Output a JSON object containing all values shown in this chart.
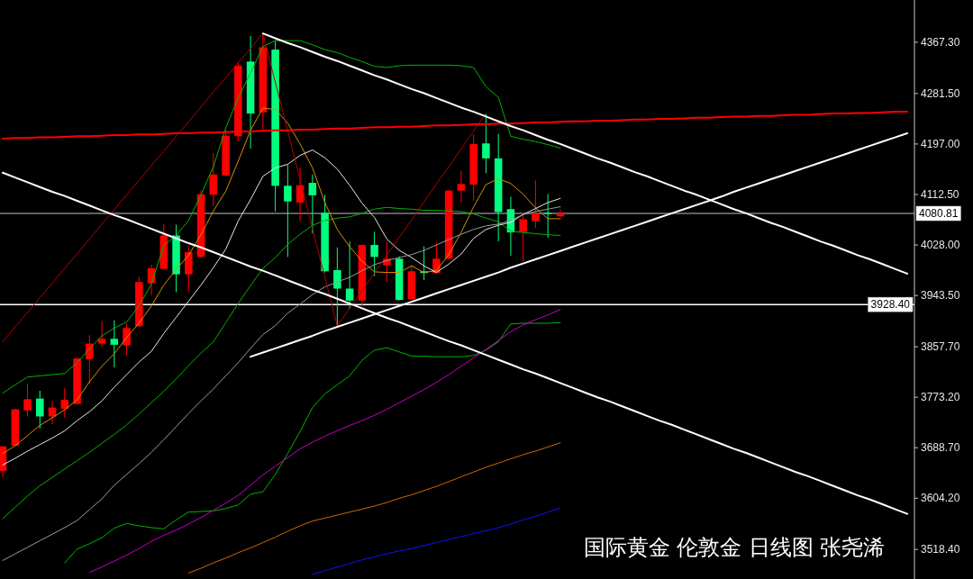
{
  "chart_data": {
    "type": "candlestick",
    "title": "国际黄金 伦敦金 日线图 张尧浠",
    "categories": [
      null,
      null,
      null,
      null,
      null,
      null,
      null,
      null,
      null,
      null,
      null,
      null,
      null,
      null,
      null,
      null,
      null,
      null,
      null,
      null,
      null,
      null,
      null,
      null,
      null,
      null,
      null,
      null,
      null,
      null,
      null,
      null,
      null,
      null,
      null,
      null,
      null,
      null,
      null,
      null,
      null,
      null,
      null,
      null,
      null,
      null,
      null,
      null,
      null,
      null,
      null,
      null,
      null,
      null,
      null,
      null,
      null,
      null,
      null,
      null,
      null,
      null,
      null,
      null,
      null,
      null,
      null,
      null,
      null,
      null,
      null,
      null,
      null,
      null
    ],
    "ohlc": [
      [
        3650,
        3692,
        3639,
        3691
      ],
      [
        3692,
        3754,
        3691,
        3753
      ],
      [
        3751,
        3796,
        3741,
        3770
      ],
      [
        3771,
        3784,
        3721,
        3741
      ],
      [
        3741,
        3767,
        3728,
        3756
      ],
      [
        3754,
        3789,
        3739,
        3769
      ],
      [
        3762,
        3840,
        3761,
        3838
      ],
      [
        3837,
        3877,
        3796,
        3863
      ],
      [
        3863,
        3901,
        3857,
        3871
      ],
      [
        3871,
        3902,
        3823,
        3861
      ],
      [
        3860,
        3897,
        3843,
        3889
      ],
      [
        3892,
        3975,
        3891,
        3966
      ],
      [
        3964,
        3995,
        3944,
        3989
      ],
      [
        3988,
        4063,
        3987,
        4044
      ],
      [
        4044,
        4062,
        3949,
        3979
      ],
      [
        3979,
        4026,
        3950,
        4016
      ],
      [
        4008,
        4119,
        4007,
        4113
      ],
      [
        4112,
        4182,
        4093,
        4146
      ],
      [
        4144,
        4221,
        4143,
        4211
      ],
      [
        4210,
        4333,
        4202,
        4328
      ],
      [
        4335,
        4378,
        4189,
        4248
      ],
      [
        4250,
        4382,
        4221,
        4359
      ],
      [
        4355,
        4370,
        4084,
        4127
      ],
      [
        4127,
        4162,
        4008,
        4101
      ],
      [
        4099,
        4157,
        4068,
        4128
      ],
      [
        4132,
        4146,
        4047,
        4111
      ],
      [
        4082,
        4112,
        3982,
        3984
      ],
      [
        3986,
        4024,
        3892,
        3955
      ],
      [
        3955,
        4034,
        3921,
        3935
      ],
      [
        3935,
        4029,
        3925,
        4028
      ],
      [
        4028,
        4050,
        3976,
        4008
      ],
      [
        3994,
        4034,
        3965,
        4005
      ],
      [
        4005,
        4009,
        3935,
        3936
      ],
      [
        3937,
        3994,
        3936,
        3984
      ],
      [
        3984,
        4026,
        3969,
        3981
      ],
      [
        3981,
        4032,
        3980,
        4005
      ],
      [
        4005,
        4120,
        4004,
        4119
      ],
      [
        4119,
        4152,
        4099,
        4130
      ],
      [
        4129,
        4213,
        4102,
        4197
      ],
      [
        4198,
        4248,
        4148,
        4173
      ],
      [
        4173,
        4214,
        4034,
        4083
      ],
      [
        4088,
        4109,
        4010,
        4049
      ],
      [
        4050,
        4082,
        4000,
        4071
      ],
      [
        4068,
        4136,
        4057,
        4081
      ],
      [
        4082,
        4113,
        4040,
        4080
      ],
      [
        4076,
        4088,
        4075,
        4081
      ],
      null,
      null,
      null,
      null,
      null,
      null,
      null,
      null,
      null,
      null,
      null,
      null,
      null,
      null,
      null,
      null,
      null,
      null,
      null,
      null,
      null,
      null,
      null,
      null,
      null,
      null,
      null,
      null
    ],
    "colors": [
      "#ff0000",
      "#ff0000",
      "#ff0000",
      "#00ff80",
      "#ff0000",
      "#ff0000",
      "#ff0000",
      "#ff0000",
      "#ff0000",
      "#00ff80",
      "#ff0000",
      "#ff0000",
      "#ff0000",
      "#ff0000",
      "#00ff80",
      "#ff0000",
      "#ff0000",
      "#ff0000",
      "#ff0000",
      "#ff0000",
      "#00ff80",
      "#ff0000",
      "#00ff80",
      "#00ff80",
      "#ff0000",
      "#00ff80",
      "#00ff80",
      "#00ff80",
      "#00ff80",
      "#ff0000",
      "#00ff80",
      "#ff0000",
      "#00ff80",
      "#ff0000",
      "#00ff80",
      "#ff0000",
      "#ff0000",
      "#ff0000",
      "#ff0000",
      "#00ff80",
      "#00ff80",
      "#00ff80",
      "#ff0000",
      "#ff0000",
      "#00ff80",
      "#ff0000",
      null,
      null,
      null,
      null,
      null,
      null,
      null,
      null,
      null,
      null,
      null,
      null,
      null,
      null,
      null,
      null,
      null,
      null,
      null,
      null,
      null,
      null,
      null,
      null,
      null,
      null,
      null,
      null
    ],
    "series": [
      {
        "type": "line",
        "color": "#00b400",
        "values": [
          3780,
          3794,
          3807,
          3809,
          3811,
          3813,
          3831,
          3854,
          3876,
          3889,
          3899,
          3926,
          3963,
          4027,
          4044,
          4069,
          4112,
          4159,
          4224,
          4274,
          4316,
          4360,
          4370,
          4370,
          4370,
          4363,
          4355,
          4350,
          4342,
          4335,
          4327,
          4325,
          4328,
          4329,
          4329,
          4329,
          4329,
          4328,
          4325,
          4293,
          4275,
          4210,
          4205,
          4201,
          4196,
          4190,
          null,
          null,
          null,
          null,
          null,
          null,
          null,
          null,
          null,
          null,
          null,
          null,
          null,
          null,
          null,
          null,
          null,
          null,
          null,
          null,
          null,
          null,
          null,
          null,
          null,
          null,
          null,
          null
        ]
      },
      {
        "type": "line",
        "color": "#00b400",
        "values": [
          3570,
          3589,
          3608,
          3625,
          3639,
          3653,
          3667,
          3681,
          3696,
          3711,
          3727,
          3745,
          3764,
          3783,
          3804,
          3826,
          3847,
          3866,
          3898,
          3930,
          3960,
          3989,
          4007,
          4029,
          4046,
          4061,
          4069,
          4073,
          4075,
          4081,
          4088,
          4091,
          4089,
          4088,
          4086,
          4086,
          4085,
          4084,
          4080,
          4073,
          4067,
          4051,
          4049,
          4047,
          4045,
          4044,
          null,
          null,
          null,
          null,
          null,
          null,
          null,
          null,
          null,
          null,
          null,
          null,
          null,
          null,
          null,
          null,
          null,
          null,
          null,
          null,
          null,
          null,
          null,
          null,
          null,
          null,
          null,
          null
        ]
      },
      {
        "type": "line",
        "color": "#00b400",
        "values": [
          null,
          null,
          null,
          null,
          null,
          3496,
          3519,
          3528,
          3538,
          3554,
          3562,
          3558,
          3555,
          3553,
          3568,
          3581,
          3582,
          3583,
          3587,
          3593,
          3611,
          3615,
          3644,
          3679,
          3716,
          3756,
          3779,
          3794,
          3809,
          3835,
          3852,
          3856,
          3849,
          3842,
          3842,
          3841,
          3841,
          3841,
          3843,
          3852,
          3866,
          3896,
          3897,
          3897,
          3897,
          3898,
          null,
          null,
          null,
          null,
          null,
          null,
          null,
          null,
          null,
          null,
          null,
          null,
          null,
          null,
          null,
          null,
          null,
          null,
          null,
          null,
          null,
          null,
          null,
          null,
          null,
          null,
          null,
          null
        ]
      },
      {
        "type": "line",
        "color": "#d89000",
        "values": [
          3679,
          3692,
          3709,
          3726,
          3739,
          3752,
          3769,
          3799,
          3825,
          3846,
          3873,
          3897,
          3926,
          3961,
          3987,
          4011,
          4045,
          4085,
          4118,
          4168,
          4220,
          4257,
          4255,
          4232,
          4197,
          4157,
          4099,
          4054,
          4025,
          4001,
          3983,
          3982,
          3982,
          3993,
          3982,
          3985,
          4012,
          4049,
          4092,
          4129,
          4139,
          4131,
          4113,
          4090,
          4072,
          4072,
          null,
          null,
          null,
          null,
          null,
          null,
          null,
          null,
          null,
          null,
          null,
          null,
          null,
          null,
          null,
          null,
          null,
          null,
          null,
          null,
          null,
          null,
          null,
          null,
          null,
          null,
          null,
          null
        ]
      },
      {
        "type": "line",
        "color": "#e8e8e8",
        "values": [
          3660,
          3671,
          3683,
          3694,
          3705,
          3717,
          3734,
          3749,
          3767,
          3790,
          3811,
          3832,
          3850,
          3880,
          3907,
          3934,
          3961,
          3990,
          4021,
          4068,
          4104,
          4143,
          4157,
          4163,
          4178,
          4187,
          4174,
          4155,
          4128,
          4098,
          4074,
          4038,
          4019,
          4007,
          3993,
          3982,
          3996,
          4013,
          4039,
          4054,
          4061,
          4066,
          4079,
          4089,
          4099,
          4106,
          null,
          null,
          null,
          null,
          null,
          null,
          null,
          null,
          null,
          null,
          null,
          null,
          null,
          null,
          null,
          null,
          null,
          null,
          null,
          null,
          null,
          null,
          null,
          null,
          null,
          null,
          null,
          null
        ]
      },
      {
        "type": "line",
        "color": "#9a9a9a",
        "values": [
          3500,
          3511,
          3522,
          3533,
          3544,
          3555,
          3567,
          3585,
          3603,
          3626,
          3644,
          3662,
          3681,
          3702,
          3724,
          3746,
          3767,
          3787,
          3809,
          3831,
          3855,
          3878,
          3893,
          3914,
          3929,
          3945,
          3958,
          3966,
          3974,
          3985,
          3995,
          4002,
          4007,
          4012,
          4019,
          4028,
          4037,
          4046,
          4054,
          4060,
          4063,
          4069,
          4079,
          4084,
          4088,
          4092,
          null,
          null,
          null,
          null,
          null,
          null,
          null,
          null,
          null,
          null,
          null,
          null,
          null,
          null,
          null,
          null,
          null,
          null,
          null,
          null,
          null,
          null,
          null,
          null,
          null,
          null,
          null,
          null
        ]
      },
      {
        "type": "line",
        "color": "#c800c8",
        "values": [
          null,
          null,
          null,
          null,
          null,
          null,
          null,
          3480,
          3489,
          3499,
          3509,
          3520,
          3532,
          3542,
          3551,
          3561,
          3572,
          3584,
          3596,
          3609,
          3626,
          3643,
          3658,
          3672,
          3687,
          3698,
          3708,
          3717,
          3726,
          3734,
          3743,
          3753,
          3764,
          3775,
          3786,
          3798,
          3811,
          3825,
          3839,
          3853,
          3868,
          3883,
          3894,
          3903,
          3911,
          3920,
          null,
          null,
          null,
          null,
          null,
          null,
          null,
          null,
          null,
          null,
          null,
          null,
          null,
          null,
          null,
          null,
          null,
          null,
          null,
          null,
          null,
          null,
          null,
          null,
          null,
          null,
          null,
          null
        ]
      },
      {
        "type": "line",
        "color": "#d06800",
        "values": [
          null,
          null,
          null,
          null,
          null,
          null,
          null,
          null,
          null,
          null,
          null,
          null,
          null,
          null,
          null,
          3479,
          3487,
          3496,
          3504,
          3513,
          3521,
          3530,
          3539,
          3549,
          3558,
          3566,
          3571,
          3576,
          3581,
          3586,
          3591,
          3597,
          3604,
          3610,
          3617,
          3624,
          3632,
          3640,
          3648,
          3656,
          3663,
          3670,
          3677,
          3683,
          3690,
          3697,
          null,
          null,
          null,
          null,
          null,
          null,
          null,
          null,
          null,
          null,
          null,
          null,
          null,
          null,
          null,
          null,
          null,
          null,
          null,
          null,
          null,
          null,
          null,
          null,
          null,
          null,
          null,
          null
        ]
      },
      {
        "type": "line",
        "color": "#1010ff",
        "values": [
          null,
          null,
          null,
          null,
          null,
          null,
          null,
          null,
          null,
          null,
          null,
          null,
          null,
          null,
          null,
          null,
          null,
          null,
          null,
          null,
          null,
          null,
          null,
          null,
          null,
          3477,
          3483,
          3489,
          3495,
          3501,
          3506,
          3511,
          3516,
          3520,
          3525,
          3530,
          3535,
          3540,
          3545,
          3550,
          3555,
          3561,
          3568,
          3574,
          3581,
          3588,
          null,
          null,
          null,
          null,
          null,
          null,
          null,
          null,
          null,
          null,
          null,
          null,
          null,
          null,
          null,
          null,
          null,
          null,
          null,
          null,
          null,
          null,
          null,
          null,
          null,
          null,
          null,
          null
        ]
      },
      {
        "type": "line",
        "color": "#b40000",
        "values": [
          3866,
          3891,
          3915,
          3940,
          3964,
          3989,
          4013,
          4038,
          4063,
          4087,
          4112,
          4136,
          4161,
          4185,
          4210,
          4234,
          4259,
          4284,
          4308,
          4333,
          4357,
          4382,
          4300,
          4219,
          4137,
          4055,
          3974,
          3892,
          3922,
          3952,
          3981,
          4011,
          4041,
          4070,
          4100,
          4130,
          4159,
          4189,
          4219,
          4248,
          null,
          null,
          null,
          null,
          null,
          null,
          null,
          null,
          null,
          null,
          null,
          null,
          null,
          null,
          null,
          null,
          null,
          null,
          null,
          null,
          null,
          null,
          null,
          null,
          null,
          null,
          null,
          null,
          null,
          null,
          null,
          null,
          null,
          null
        ]
      },
      {
        "type": "line",
        "color": "#ff0000",
        "values": [
          4206,
          4207,
          4207,
          4208,
          4208,
          4209,
          4210,
          4210,
          4211,
          4212,
          4212,
          4213,
          4213,
          4214,
          4215,
          4215,
          4216,
          4216,
          4217,
          4218,
          4218,
          4219,
          4220,
          4220,
          4221,
          4221,
          4222,
          4223,
          4223,
          4224,
          4225,
          4225,
          4226,
          4226,
          4227,
          4228,
          4228,
          4229,
          4230,
          4230,
          4231,
          4231,
          4232,
          4233,
          4233,
          4234,
          4235,
          4235,
          4236,
          4236,
          4237,
          4238,
          4238,
          4239,
          4239,
          4240,
          4241,
          4241,
          4242,
          4243,
          4243,
          4244,
          4244,
          4245,
          4246,
          4246,
          4247,
          4248,
          4248,
          4249,
          4249,
          4250,
          4251,
          4251
        ]
      },
      {
        "type": "line",
        "color": "#ffffff",
        "values": [
          4149,
          4141,
          4133,
          4125,
          4117,
          4110,
          4102,
          4094,
          4086,
          4078,
          4071,
          4063,
          4055,
          4047,
          4039,
          4031,
          4024,
          4016,
          4008,
          4000,
          3992,
          3985,
          3977,
          3969,
          3961,
          3953,
          3946,
          3938,
          3930,
          3922,
          3914,
          3906,
          3899,
          3891,
          3883,
          3875,
          3867,
          3860,
          3852,
          3844,
          3836,
          3828,
          3820,
          3813,
          3805,
          3797,
          3789,
          3781,
          3773,
          3766,
          3758,
          3750,
          3742,
          3734,
          3727,
          3719,
          3711,
          3703,
          3695,
          3687,
          3680,
          3672,
          3664,
          3656,
          3648,
          3641,
          3633,
          3625,
          3617,
          3609,
          3602,
          3594,
          3586,
          3578
        ]
      },
      {
        "type": "line",
        "color": "#ffffff",
        "values": [
          null,
          null,
          null,
          null,
          null,
          null,
          null,
          null,
          null,
          null,
          null,
          null,
          null,
          null,
          null,
          null,
          null,
          null,
          null,
          null,
          null,
          4382,
          4374,
          4366,
          4359,
          4351,
          4343,
          4336,
          4328,
          4320,
          4312,
          4305,
          4297,
          4289,
          4282,
          4274,
          4266,
          4258,
          4251,
          4243,
          4235,
          4227,
          4220,
          4212,
          4204,
          4197,
          4189,
          4181,
          4173,
          4166,
          4158,
          4150,
          4143,
          4135,
          4127,
          4119,
          4112,
          4104,
          4096,
          4088,
          4081,
          4073,
          4065,
          4058,
          4050,
          4042,
          4034,
          4027,
          4019,
          4011,
          4004,
          3996,
          3988,
          3980
        ]
      },
      {
        "type": "line",
        "color": "#ffffff",
        "values": [
          null,
          null,
          null,
          null,
          null,
          null,
          null,
          null,
          null,
          null,
          null,
          null,
          null,
          null,
          null,
          null,
          null,
          null,
          null,
          null,
          3841,
          3848,
          3855,
          3862,
          3869,
          3876,
          3884,
          3891,
          3898,
          3905,
          3912,
          3919,
          3926,
          3933,
          3940,
          3947,
          3954,
          3961,
          3968,
          3975,
          3982,
          3990,
          3997,
          4004,
          4011,
          4018,
          4025,
          4032,
          4039,
          4046,
          4053,
          4060,
          4067,
          4074,
          4081,
          4088,
          4095,
          4102,
          4109,
          4117,
          4124,
          4131,
          4138,
          4145,
          4152,
          4159,
          4166,
          4173,
          4180,
          4187,
          4194,
          4201,
          4208,
          4215
        ]
      }
    ],
    "ylim": [
      3469,
      4438
    ],
    "yticks": [
      {
        "value": 4367.3,
        "label": "4367.30"
      },
      {
        "value": 4281.5,
        "label": "4281.50"
      },
      {
        "value": 4197,
        "label": "4197.00"
      },
      {
        "value": 4112.5,
        "label": "4112.50"
      },
      {
        "value": 4028,
        "label": "4028.00"
      },
      {
        "value": 3943.5,
        "label": "3943.50"
      },
      {
        "value": 3857.7,
        "label": "3857.70"
      },
      {
        "value": 3773.2,
        "label": "3773.20"
      },
      {
        "value": 3688.7,
        "label": "3688.70"
      },
      {
        "value": 3604.2,
        "label": "3604.20"
      },
      {
        "value": 3518.4,
        "label": "3518.40"
      }
    ],
    "ref_lines": [
      {
        "axis": "y",
        "value": 4080.81,
        "label": "4080.81",
        "color": "#808080"
      },
      {
        "axis": "y",
        "value": 3928.4,
        "label": "3928.40",
        "color": "#ffffff"
      }
    ],
    "tick_labels": "y"
  }
}
